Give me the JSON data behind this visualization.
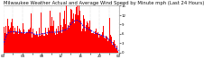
{
  "title": "Milwaukee Weather Actual and Average Wind Speed by Minute mph (Last 24 Hours)",
  "background_color": "#ffffff",
  "bar_color": "#ff0000",
  "line_color": "#0000ff",
  "n_points": 1440,
  "ylim": [
    0,
    15
  ],
  "yticks": [
    0,
    3,
    6,
    9,
    12,
    15
  ],
  "ytick_labels": [
    "0",
    "3",
    "6",
    "9",
    "12",
    "15"
  ],
  "grid_color": "#bbbbbb",
  "title_fontsize": 3.8,
  "tick_fontsize": 2.8,
  "seed": 10
}
